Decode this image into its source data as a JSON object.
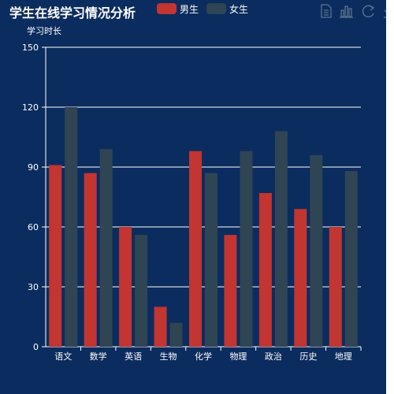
{
  "title": "学生在线学习情况分析",
  "legend": [
    {
      "name": "男生",
      "color": "#c23531"
    },
    {
      "name": "女生",
      "color": "#2f4554"
    }
  ],
  "toolbox": [
    "data-view-icon",
    "bar-chart-icon",
    "restore-icon",
    "save-image-icon"
  ],
  "chart_data": {
    "type": "bar",
    "title": "学生在线学习情况分析",
    "xlabel": "",
    "ylabel": "学习时长",
    "ylim": [
      0,
      150
    ],
    "yticks": [
      0,
      30,
      60,
      90,
      120,
      150
    ],
    "grid": true,
    "legend_position": "top",
    "categories": [
      "语文",
      "数学",
      "英语",
      "生物",
      "化学",
      "物理",
      "政治",
      "历史",
      "地理"
    ],
    "series": [
      {
        "name": "男生",
        "color": "#c23531",
        "values": [
          91,
          87,
          60,
          20,
          98,
          56,
          77,
          69,
          60
        ]
      },
      {
        "name": "女生",
        "color": "#2f4554",
        "values": [
          120,
          99,
          56,
          12,
          87,
          98,
          108,
          96,
          88
        ]
      }
    ]
  }
}
